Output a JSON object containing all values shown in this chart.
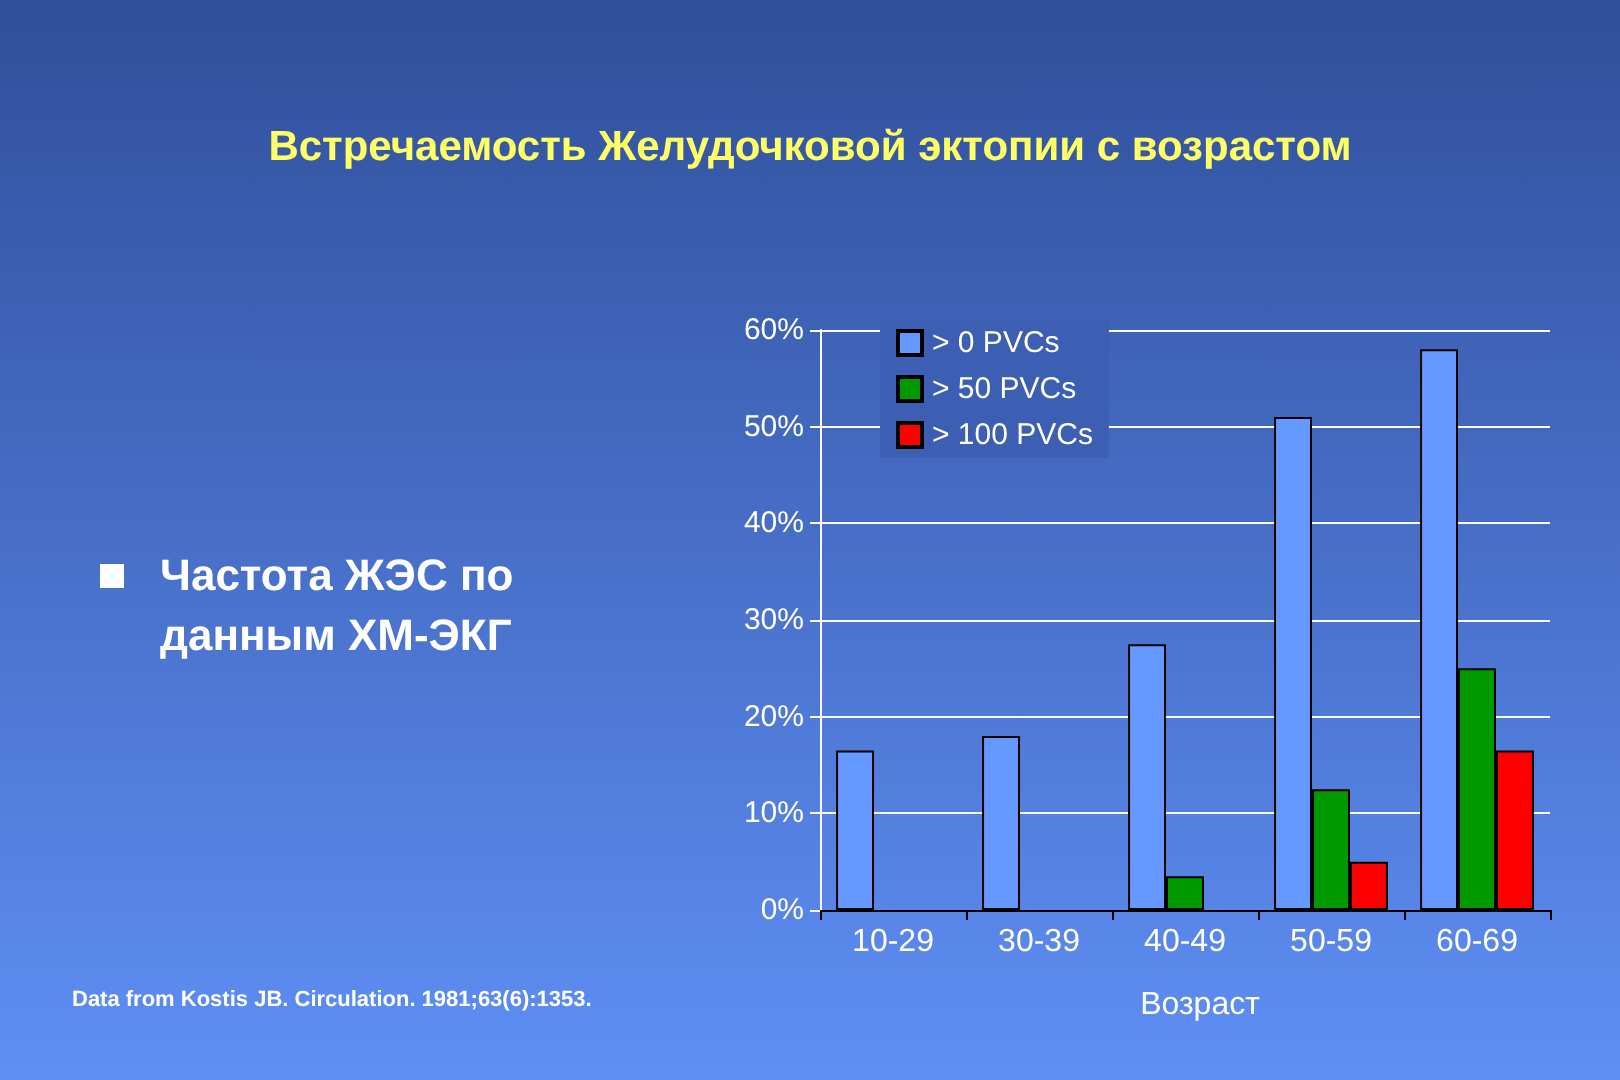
{
  "chart_data": {
    "type": "bar",
    "title": "Встречаемость Желудочковой эктопии с возрастом",
    "xlabel": "Возраст",
    "categories": [
      "10-29",
      "30-39",
      "40-49",
      "50-59",
      "60-69"
    ],
    "series": [
      {
        "name": "> 0 PVCs",
        "color": "#6699ff",
        "values": [
          16.5,
          18,
          27.5,
          51,
          58
        ]
      },
      {
        "name": "> 50 PVCs",
        "color": "#009900",
        "values": [
          0,
          0,
          3.5,
          12.5,
          25
        ]
      },
      {
        "name": "> 100 PVCs",
        "color": "#ff0000",
        "values": [
          0,
          0,
          0,
          5,
          16.5
        ]
      }
    ],
    "ylim": [
      0,
      60
    ],
    "yticks": [
      {
        "value": 0,
        "label": "0%"
      },
      {
        "value": 10,
        "label": "10%"
      },
      {
        "value": 20,
        "label": "20%"
      },
      {
        "value": 30,
        "label": "30%"
      },
      {
        "value": 40,
        "label": "40%"
      },
      {
        "value": 50,
        "label": "50%"
      },
      {
        "value": 60,
        "label": "60%"
      }
    ],
    "grid": "y",
    "legend": "top left",
    "annotations": [
      "Частота ЖЭС по данным ХМ-ЭКГ",
      "Data from Kostis JB.  Circulation.  1981;63(6):1353."
    ]
  }
}
